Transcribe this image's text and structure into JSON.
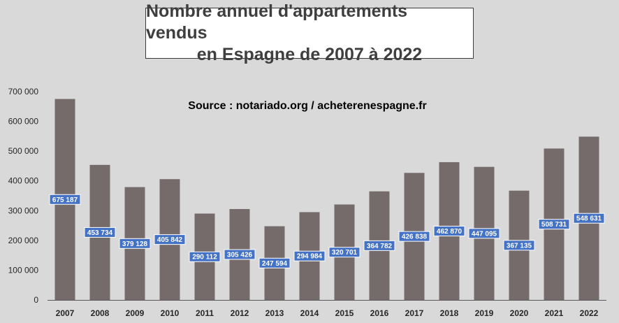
{
  "chart_data": {
    "type": "bar",
    "title_line1": "Nombre annuel d'appartements vendus",
    "title_line2": "en Espagne de 2007 à 2022",
    "source": "Source : notariado.org / acheterenespagne.fr",
    "categories": [
      "2007",
      "2008",
      "2009",
      "2010",
      "2011",
      "2012",
      "2013",
      "2014",
      "2015",
      "2016",
      "2017",
      "2018",
      "2019",
      "2020",
      "2021",
      "2022"
    ],
    "values": [
      675187,
      453734,
      379128,
      405842,
      290112,
      305426,
      247594,
      294984,
      320701,
      364782,
      426838,
      462870,
      447095,
      367135,
      508731,
      548631
    ],
    "data_labels": [
      "675 187",
      "453 734",
      "379 128",
      "405 842",
      "290 112",
      "305 426",
      "247 594",
      "294 984",
      "320 701",
      "364 782",
      "426 838",
      "462 870",
      "447 095",
      "367 135",
      "508 731",
      "548 631"
    ],
    "ylim": [
      0,
      700000
    ],
    "yticks": [
      0,
      100000,
      200000,
      300000,
      400000,
      500000,
      600000,
      700000
    ],
    "ytick_labels": [
      "0",
      "100 000",
      "200 000",
      "300 000",
      "400 000",
      "500 000",
      "600 000",
      "700 000"
    ],
    "grid": false,
    "legend": "none",
    "colors": {
      "background": "#d9d9d9",
      "bar": "#766b6b",
      "data_label_bg": "#4472c4",
      "data_label_text": "#ffffff",
      "axis": "#262626"
    }
  }
}
